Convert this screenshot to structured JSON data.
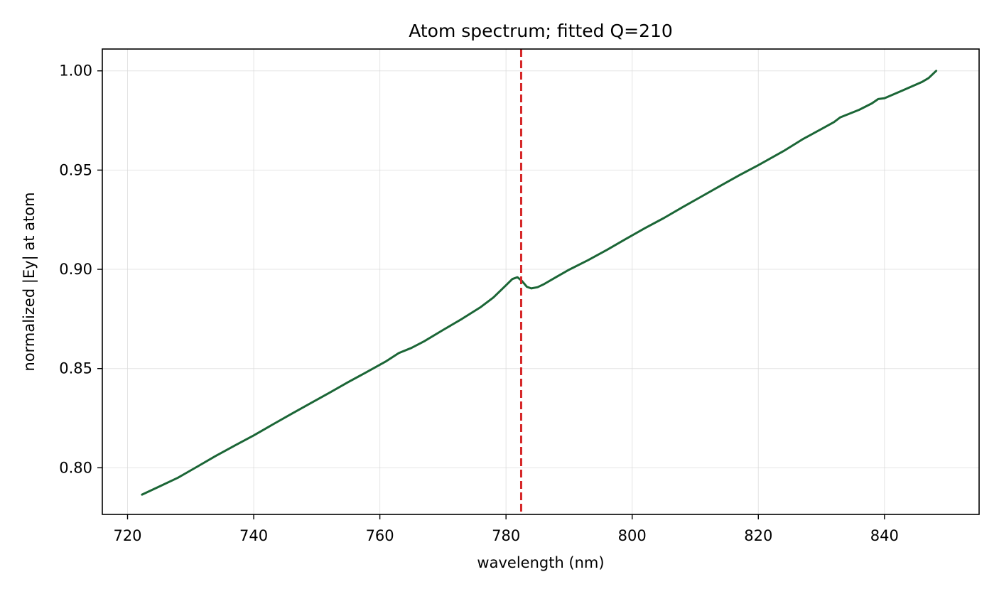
{
  "chart_data": {
    "type": "line",
    "title": "Atom spectrum; fitted Q=210",
    "xlabel": "wavelength (nm)",
    "ylabel": "normalized |Ey| at atom",
    "xlim": [
      716,
      855
    ],
    "ylim": [
      0.7765,
      1.011
    ],
    "xticks": [
      720,
      740,
      760,
      780,
      800,
      820,
      840
    ],
    "xtick_labels": [
      "720",
      "740",
      "760",
      "780",
      "800",
      "820",
      "840"
    ],
    "yticks": [
      0.8,
      0.85,
      0.9,
      0.95,
      1.0
    ],
    "ytick_labels": [
      "0.80",
      "0.85",
      "0.90",
      "0.95",
      "1.00"
    ],
    "grid": true,
    "series": [
      {
        "color": "#1b6636",
        "x": [
          722.3,
          725,
          728,
          731,
          734,
          737,
          740,
          743,
          746,
          749,
          752,
          755,
          758,
          761,
          763,
          765,
          767,
          770,
          773,
          776,
          778,
          780,
          781,
          781.8,
          782.5,
          783.3,
          784,
          785,
          786,
          788,
          790,
          793,
          796,
          799,
          802,
          805,
          808,
          811,
          814,
          817,
          820,
          824,
          827,
          830,
          832,
          833,
          836,
          838,
          839,
          840,
          843,
          846,
          847,
          848.2
        ],
        "y": [
          0.7865,
          0.7905,
          0.795,
          0.8005,
          0.806,
          0.8112,
          0.8163,
          0.8218,
          0.8272,
          0.8325,
          0.8378,
          0.8432,
          0.8484,
          0.8537,
          0.8578,
          0.8604,
          0.8637,
          0.8694,
          0.875,
          0.881,
          0.8858,
          0.892,
          0.8951,
          0.896,
          0.8942,
          0.8912,
          0.8904,
          0.891,
          0.8925,
          0.8962,
          0.8998,
          0.9046,
          0.9098,
          0.9153,
          0.9207,
          0.9258,
          0.9313,
          0.9367,
          0.9421,
          0.9474,
          0.9525,
          0.9596,
          0.9655,
          0.9707,
          0.9742,
          0.9766,
          0.9804,
          0.9836,
          0.9858,
          0.9862,
          0.9903,
          0.9945,
          0.9964,
          1.0
        ]
      }
    ],
    "vline": {
      "x": 782.4,
      "color": "#d62728",
      "style": "dashed"
    }
  }
}
